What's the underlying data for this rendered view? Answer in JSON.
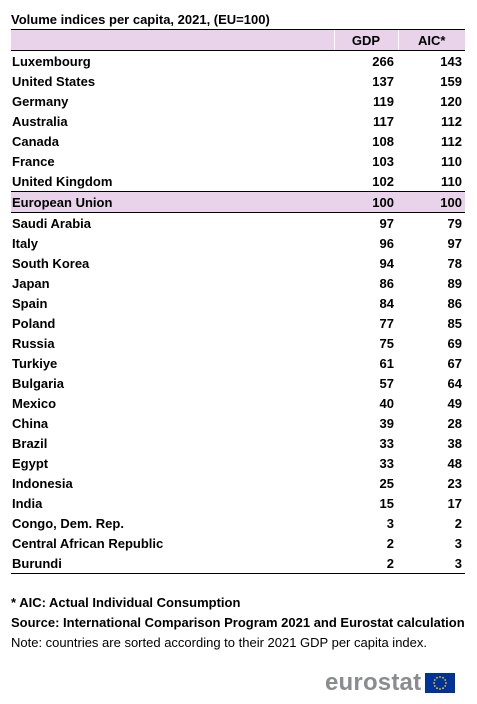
{
  "title": "Volume indices per capita, 2021, (EU=100)",
  "headers": {
    "country": "",
    "gdp": "GDP",
    "aic": "AIC*"
  },
  "rows": [
    {
      "country": "Luxembourg",
      "gdp": "266",
      "aic": "143"
    },
    {
      "country": "United States",
      "gdp": "137",
      "aic": "159"
    },
    {
      "country": "Germany",
      "gdp": "119",
      "aic": "120"
    },
    {
      "country": "Australia",
      "gdp": "117",
      "aic": "112"
    },
    {
      "country": "Canada",
      "gdp": "108",
      "aic": "112"
    },
    {
      "country": "France",
      "gdp": "103",
      "aic": "110"
    },
    {
      "country": "United Kingdom",
      "gdp": "102",
      "aic": "110"
    },
    {
      "country": "European Union",
      "gdp": "100",
      "aic": "100"
    },
    {
      "country": "Saudi Arabia",
      "gdp": "97",
      "aic": "79"
    },
    {
      "country": "Italy",
      "gdp": "96",
      "aic": "97"
    },
    {
      "country": "South Korea",
      "gdp": "94",
      "aic": "78"
    },
    {
      "country": "Japan",
      "gdp": "86",
      "aic": "89"
    },
    {
      "country": "Spain",
      "gdp": "84",
      "aic": "86"
    },
    {
      "country": "Poland",
      "gdp": "77",
      "aic": "85"
    },
    {
      "country": "Russia",
      "gdp": "75",
      "aic": "69"
    },
    {
      "country": "Turkiye",
      "gdp": "61",
      "aic": "67"
    },
    {
      "country": "Bulgaria",
      "gdp": "57",
      "aic": "64"
    },
    {
      "country": "Mexico",
      "gdp": "40",
      "aic": "49"
    },
    {
      "country": "China",
      "gdp": "39",
      "aic": "28"
    },
    {
      "country": "Brazil",
      "gdp": "33",
      "aic": "38"
    },
    {
      "country": "Egypt",
      "gdp": "33",
      "aic": "48"
    },
    {
      "country": "Indonesia",
      "gdp": "25",
      "aic": "23"
    },
    {
      "country": "India",
      "gdp": "15",
      "aic": "17"
    },
    {
      "country": "Congo, Dem. Rep.",
      "gdp": "3",
      "aic": "2"
    },
    {
      "country": "Central African Republic",
      "gdp": "2",
      "aic": "3"
    },
    {
      "country": "Burundi",
      "gdp": "2",
      "aic": "3"
    }
  ],
  "highlight_country": "European Union",
  "notes": {
    "aic_definition": "* AIC: Actual Individual Consumption",
    "source": "Source: International Comparison Program 2021 and Eurostat calculation",
    "sorting": "Note: countries are sorted according to their 2021 GDP per capita index."
  },
  "logo": {
    "text": "eurostat",
    "icon": "eu-flag-icon"
  },
  "colors": {
    "highlight": "#e9d3eb",
    "logo_text": "#8a8d90",
    "flag_blue": "#003399",
    "flag_stars": "#ffcc00"
  }
}
